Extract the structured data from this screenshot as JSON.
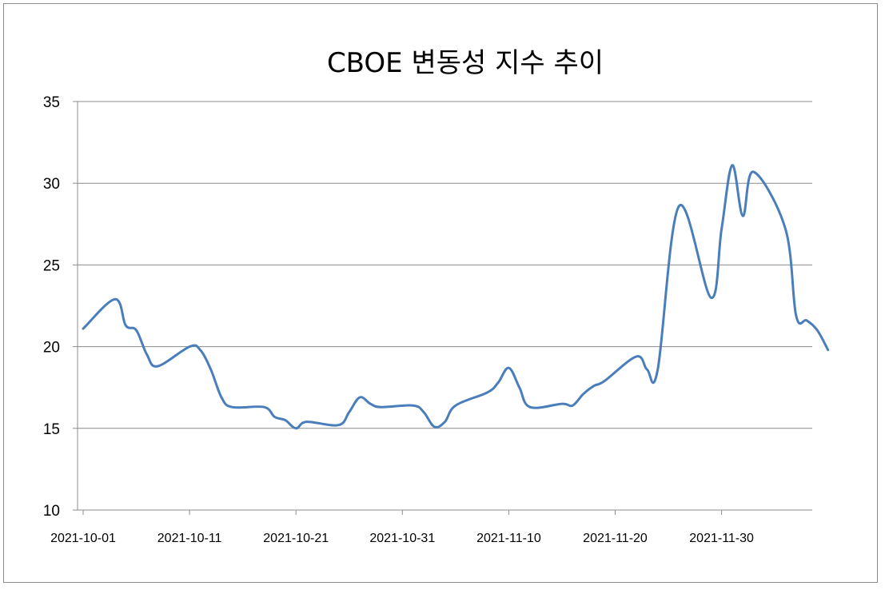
{
  "chart_data": {
    "type": "line",
    "title": "CBOE  변동성 지수 추이",
    "xlabel": "",
    "ylabel": "",
    "ylim": [
      10,
      35
    ],
    "yticks": [
      10,
      15,
      20,
      25,
      30,
      35
    ],
    "xlim": [
      "2021-10-01",
      "2021-12-10"
    ],
    "xticks": [
      "2021-10-01",
      "2021-10-11",
      "2021-10-21",
      "2021-10-31",
      "2021-11-10",
      "2021-11-20",
      "2021-11-30"
    ],
    "grid": true,
    "legend": "none",
    "series_color": "#4a7ebb",
    "series": [
      {
        "x": [
          "2021-10-01",
          "2021-10-04",
          "2021-10-05",
          "2021-10-06",
          "2021-10-07",
          "2021-10-08",
          "2021-10-11",
          "2021-10-12",
          "2021-10-13",
          "2021-10-14",
          "2021-10-15",
          "2021-10-18",
          "2021-10-19",
          "2021-10-20",
          "2021-10-21",
          "2021-10-22",
          "2021-10-25",
          "2021-10-26",
          "2021-10-27",
          "2021-10-28",
          "2021-10-29",
          "2021-11-01",
          "2021-11-02",
          "2021-11-03",
          "2021-11-04",
          "2021-11-05",
          "2021-11-08",
          "2021-11-09",
          "2021-11-10",
          "2021-11-11",
          "2021-11-12",
          "2021-11-15",
          "2021-11-16",
          "2021-11-17",
          "2021-11-18",
          "2021-11-19",
          "2021-11-22",
          "2021-11-23",
          "2021-11-24",
          "2021-11-26",
          "2021-11-29",
          "2021-11-30",
          "2021-12-01",
          "2021-12-02",
          "2021-12-03",
          "2021-12-06",
          "2021-12-07",
          "2021-12-08",
          "2021-12-09",
          "2021-12-10"
        ],
        "values": [
          21.1,
          22.9,
          21.3,
          21.0,
          19.5,
          18.8,
          20.0,
          19.8,
          18.6,
          16.9,
          16.3,
          16.3,
          15.7,
          15.5,
          15.0,
          15.4,
          15.2,
          16.0,
          16.9,
          16.5,
          16.3,
          16.4,
          16.0,
          15.1,
          15.4,
          16.4,
          17.2,
          17.8,
          18.7,
          17.5,
          16.3,
          16.5,
          16.4,
          17.1,
          17.6,
          17.9,
          19.4,
          18.6,
          18.6,
          28.6,
          23.0,
          27.2,
          31.1,
          28.0,
          30.7,
          27.2,
          21.9,
          21.6,
          21.0,
          19.8
        ]
      }
    ]
  }
}
